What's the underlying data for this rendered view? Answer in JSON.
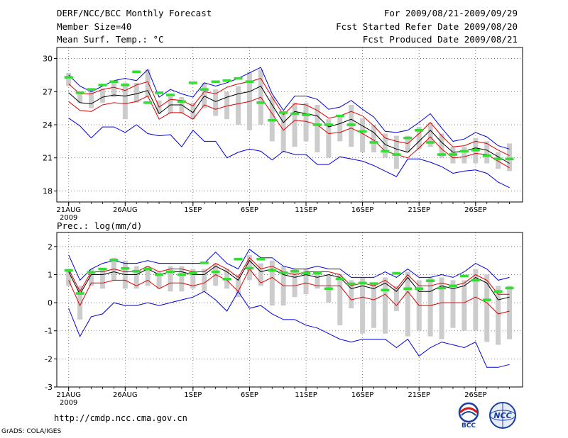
{
  "header": {
    "title": "DERF/NCC/BCC Monthly Forecast",
    "member_size": "Member Size=40",
    "variable": "Mean Surf. Temp.: °C",
    "period": "For 2009/08/21-2009/09/29",
    "started": "Fcst Started Refer Date 2009/08/20",
    "produced": "Fcst Produced Date 2009/08/21"
  },
  "footer": {
    "url": "http://cmdp.ncc.cma.gov.cn",
    "credit": "GrADS: COLA/IGES",
    "logo_bcc_text": "BCC",
    "logo_ncc_text": "NCC"
  },
  "colors": {
    "max_min": "#0000dd",
    "std": "#dd0000",
    "mean": "#000000",
    "box": "#cccccc",
    "obs": "#33dd33"
  },
  "chart_data": [
    {
      "type": "line",
      "title": "Mean Surf. Temp.: °C",
      "x_ticks": [
        "21AUG",
        "26AUG",
        "1SEP",
        "6SEP",
        "11SEP",
        "16SEP",
        "21SEP",
        "26SEP"
      ],
      "x_tick_days": [
        1,
        6,
        12,
        17,
        22,
        27,
        32,
        37
      ],
      "x_sublabel": "2009",
      "ylim": [
        17,
        31
      ],
      "y_ticks": [
        18,
        21,
        24,
        27,
        30
      ],
      "series": [
        {
          "name": "max",
          "values": [
            28.5,
            27.5,
            27.0,
            27.5,
            28.0,
            28.2,
            28.0,
            29.0,
            26.5,
            27.2,
            26.8,
            26.5,
            27.8,
            27.5,
            27.8,
            28.2,
            28.7,
            29.2,
            26.8,
            25.3,
            26.6,
            26.6,
            26.3,
            25.4,
            25.6,
            26.2,
            25.4,
            24.7,
            23.4,
            23.3,
            23.5,
            24.2,
            25.0,
            23.7,
            22.5,
            22.7,
            23.3,
            22.9,
            22.1,
            21.8
          ]
        },
        {
          "name": "mean_plus_std",
          "values": [
            27.7,
            26.8,
            26.8,
            27.2,
            27.4,
            27.1,
            27.6,
            27.9,
            25.6,
            26.3,
            26.2,
            25.7,
            27.0,
            26.8,
            27.4,
            27.7,
            27.9,
            28.2,
            26.5,
            24.9,
            25.9,
            25.8,
            25.3,
            24.6,
            24.8,
            25.2,
            24.8,
            23.9,
            22.8,
            22.5,
            22.3,
            23.2,
            24.2,
            23.0,
            22.0,
            22.1,
            22.5,
            22.3,
            21.7,
            21.2
          ]
        },
        {
          "name": "mean",
          "values": [
            26.9,
            26.0,
            25.9,
            26.5,
            26.7,
            26.6,
            26.8,
            27.1,
            25.0,
            25.8,
            25.8,
            25.1,
            26.6,
            26.1,
            26.5,
            26.8,
            27.0,
            27.5,
            25.8,
            24.2,
            25.2,
            25.0,
            24.8,
            23.8,
            24.1,
            24.5,
            23.9,
            23.3,
            22.2,
            21.8,
            21.5,
            22.5,
            23.5,
            22.4,
            21.5,
            21.6,
            21.9,
            21.7,
            21.1,
            20.5
          ]
        },
        {
          "name": "mean_minus_std",
          "values": [
            26.1,
            25.3,
            25.2,
            25.8,
            26.0,
            25.9,
            26.1,
            26.6,
            24.5,
            25.1,
            25.1,
            24.5,
            25.8,
            25.4,
            25.7,
            25.9,
            26.1,
            26.5,
            25.0,
            23.5,
            24.4,
            24.3,
            24.0,
            23.2,
            23.3,
            23.7,
            23.2,
            22.6,
            21.6,
            21.3,
            21.0,
            21.9,
            22.9,
            21.8,
            21.0,
            21.1,
            21.4,
            21.3,
            20.7,
            20.1
          ]
        },
        {
          "name": "min",
          "values": [
            24.6,
            23.9,
            22.8,
            23.8,
            23.8,
            23.3,
            24.0,
            23.2,
            23.0,
            23.1,
            22.0,
            23.5,
            22.5,
            22.5,
            21.0,
            21.5,
            21.8,
            21.6,
            20.8,
            21.6,
            21.3,
            21.3,
            20.4,
            20.4,
            21.1,
            20.9,
            20.7,
            20.3,
            19.8,
            19.3,
            20.9,
            20.9,
            20.6,
            20.2,
            19.6,
            19.8,
            19.9,
            19.6,
            18.8,
            18.3
          ]
        },
        {
          "name": "box_high",
          "values": [
            28.7,
            27.0,
            27.0,
            27.3,
            27.8,
            27.8,
            27.8,
            29.0,
            26.2,
            26.8,
            26.5,
            26.0,
            27.8,
            27.2,
            27.0,
            27.5,
            28.8,
            29.0,
            26.5,
            25.0,
            26.0,
            26.0,
            25.8,
            24.5,
            24.8,
            25.8,
            24.6,
            24.0,
            23.2,
            23.0,
            23.0,
            23.8,
            24.2,
            23.2,
            22.0,
            22.0,
            22.8,
            22.5,
            21.5,
            22.3
          ]
        },
        {
          "name": "box_low",
          "values": [
            27.5,
            26.0,
            25.5,
            26.0,
            26.5,
            24.5,
            26.0,
            26.5,
            25.0,
            25.0,
            25.0,
            24.5,
            25.5,
            24.8,
            24.5,
            24.0,
            23.5,
            24.0,
            22.5,
            21.5,
            22.0,
            22.5,
            21.5,
            21.0,
            22.5,
            22.0,
            21.5,
            21.5,
            21.0,
            20.0,
            21.5,
            21.8,
            22.0,
            21.0,
            20.5,
            20.5,
            20.5,
            20.5,
            20.0,
            19.8
          ]
        },
        {
          "name": "observed",
          "values": [
            28.3,
            26.9,
            27.2,
            27.6,
            27.9,
            27.6,
            28.8,
            26.0,
            26.9,
            26.7,
            26.1,
            27.8,
            27.2,
            27.9,
            28.0,
            28.2,
            27.9,
            26.0,
            24.4,
            25.1,
            25.0,
            24.9,
            24.0,
            24.0,
            24.8,
            24.0,
            23.4,
            22.4,
            21.6,
            21.3,
            22.8,
            23.5,
            22.4,
            21.3,
            21.3,
            21.6,
            21.7,
            21.2,
            20.9,
            20.9
          ]
        }
      ]
    },
    {
      "type": "line",
      "title": "Prec.: log(mm/d)",
      "x_ticks": [
        "21AUG",
        "26AUG",
        "1SEP",
        "6SEP",
        "11SEP",
        "16SEP",
        "21SEP",
        "26SEP"
      ],
      "x_tick_days": [
        1,
        6,
        12,
        17,
        22,
        27,
        32,
        37
      ],
      "x_sublabel": "2009",
      "ylim": [
        -3,
        2.5
      ],
      "y_ticks": [
        -3,
        -2,
        -1,
        0,
        1,
        2
      ],
      "series": [
        {
          "name": "max",
          "values": [
            1.7,
            0.8,
            1.2,
            1.4,
            1.5,
            1.4,
            1.4,
            1.5,
            1.4,
            1.4,
            1.4,
            1.4,
            1.4,
            1.8,
            1.4,
            1.2,
            1.9,
            1.6,
            1.6,
            1.3,
            1.2,
            1.2,
            1.3,
            1.2,
            1.2,
            0.9,
            0.9,
            0.9,
            1.1,
            0.9,
            1.2,
            0.9,
            0.9,
            1.0,
            0.9,
            1.1,
            1.4,
            1.2,
            0.8,
            0.9
          ]
        },
        {
          "name": "mean_plus_std",
          "values": [
            1.2,
            0.4,
            1.1,
            1.1,
            1.2,
            1.1,
            1.1,
            1.3,
            1.1,
            1.2,
            1.2,
            1.1,
            1.1,
            1.4,
            1.2,
            0.9,
            1.6,
            1.2,
            1.3,
            1.1,
            1.0,
            1.1,
            1.1,
            1.1,
            1.0,
            0.6,
            0.7,
            0.6,
            0.8,
            0.5,
            1.0,
            0.6,
            0.6,
            0.7,
            0.6,
            0.7,
            1.0,
            0.8,
            0.3,
            0.3
          ]
        },
        {
          "name": "mean",
          "values": [
            1.1,
            0.3,
            1.0,
            1.0,
            1.1,
            1.0,
            1.0,
            1.2,
            1.0,
            1.1,
            1.1,
            1.0,
            1.0,
            1.3,
            1.1,
            0.8,
            1.5,
            1.1,
            1.2,
            1.0,
            0.9,
            1.0,
            0.9,
            1.0,
            0.9,
            0.5,
            0.6,
            0.5,
            0.7,
            0.4,
            0.9,
            0.4,
            0.4,
            0.6,
            0.5,
            0.6,
            0.9,
            0.7,
            0.1,
            0.2
          ]
        },
        {
          "name": "mean_minus_std",
          "values": [
            0.8,
            -0.1,
            0.7,
            0.7,
            0.8,
            0.8,
            0.6,
            0.8,
            0.5,
            0.7,
            0.7,
            0.6,
            0.7,
            1.0,
            0.8,
            0.4,
            1.2,
            0.7,
            0.9,
            0.6,
            0.6,
            0.7,
            0.6,
            0.6,
            0.6,
            0.1,
            0.2,
            0.1,
            0.3,
            -0.1,
            0.4,
            -0.1,
            -0.1,
            0.0,
            0.0,
            0.0,
            0.2,
            0.0,
            -0.4,
            -0.3
          ]
        },
        {
          "name": "min",
          "values": [
            -0.2,
            -1.2,
            -0.5,
            -0.4,
            0.0,
            -0.1,
            -0.1,
            0.0,
            -0.1,
            0.0,
            0.1,
            0.2,
            0.4,
            0.1,
            -0.3,
            0.4,
            -0.2,
            -0.1,
            -0.4,
            -0.6,
            -0.6,
            -0.8,
            -0.9,
            -1.1,
            -1.3,
            -1.4,
            -1.3,
            -1.3,
            -1.3,
            -1.6,
            -1.3,
            -1.9,
            -1.6,
            -1.4,
            -1.5,
            -1.6,
            -1.4,
            -2.3,
            -2.3,
            -2.2
          ]
        },
        {
          "name": "box_high",
          "values": [
            1.2,
            0.6,
            1.2,
            1.2,
            1.6,
            1.5,
            1.3,
            1.3,
            1.1,
            1.3,
            1.3,
            1.2,
            1.2,
            1.4,
            1.2,
            1.0,
            1.7,
            1.4,
            1.5,
            1.3,
            1.2,
            1.2,
            1.1,
            1.0,
            1.0,
            0.8,
            0.9,
            0.7,
            0.9,
            0.6,
            1.1,
            0.8,
            0.9,
            0.9,
            0.8,
            0.8,
            1.2,
            1.0,
            0.6,
            0.6
          ]
        },
        {
          "name": "box_low",
          "values": [
            0.6,
            -0.6,
            0.6,
            0.5,
            0.8,
            0.5,
            0.5,
            0.6,
            0.5,
            0.4,
            0.4,
            0.5,
            0.4,
            0.6,
            0.5,
            0.2,
            0.8,
            0.6,
            -0.1,
            -0.1,
            0.2,
            0.3,
            0.5,
            0.0,
            -0.8,
            -0.2,
            -1.1,
            -0.9,
            -1.1,
            -0.3,
            -1.2,
            -1.0,
            -1.2,
            -1.3,
            -0.9,
            -1.0,
            -1.0,
            -1.4,
            -1.5,
            -1.3
          ]
        },
        {
          "name": "observed",
          "values": [
            1.15,
            0.33,
            1.08,
            1.2,
            1.52,
            1.22,
            1.12,
            1.2,
            1.0,
            1.1,
            1.0,
            1.05,
            1.42,
            1.1,
            0.84,
            1.55,
            1.23,
            1.55,
            1.15,
            1.07,
            1.12,
            1.05,
            1.05,
            0.5,
            0.85,
            0.67,
            0.7,
            0.68,
            0.45,
            1.05,
            0.5,
            0.5,
            0.78,
            0.52,
            0.6,
            0.95,
            0.8,
            0.1,
            0.4,
            0.52
          ]
        }
      ]
    }
  ]
}
